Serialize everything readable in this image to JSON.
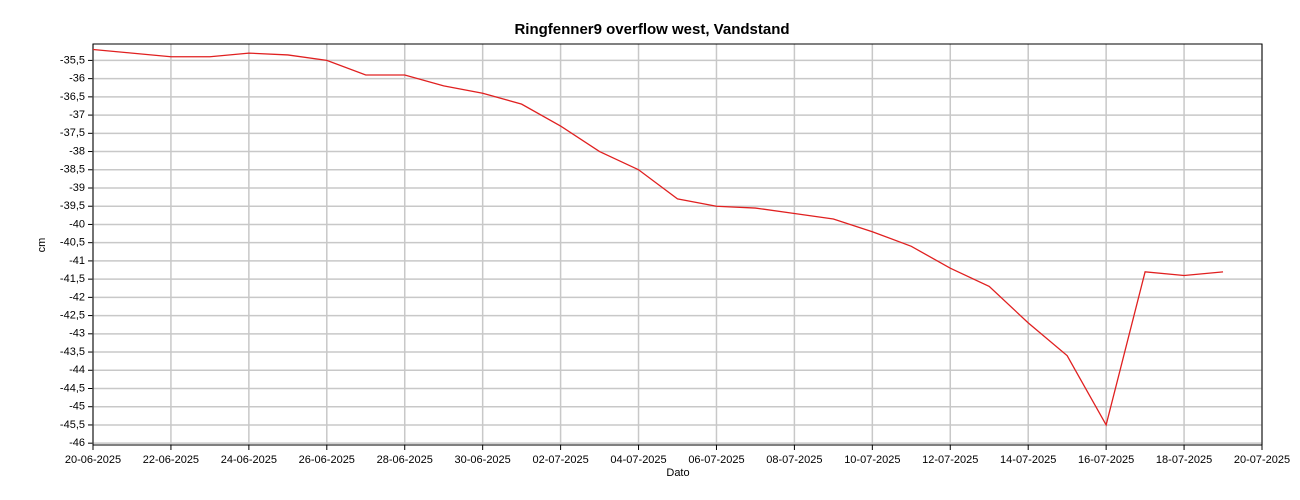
{
  "chart_data": {
    "type": "line",
    "title": "Ringfenner9 overflow west, Vandstand",
    "xlabel": "Dato",
    "ylabel": "cm",
    "grid": true,
    "x": [
      "2025-06-20",
      "2025-06-21",
      "2025-06-22",
      "2025-06-23",
      "2025-06-24",
      "2025-06-25",
      "2025-06-26",
      "2025-06-27",
      "2025-06-28",
      "2025-06-29",
      "2025-06-30",
      "2025-07-01",
      "2025-07-02",
      "2025-07-03",
      "2025-07-04",
      "2025-07-05",
      "2025-07-06",
      "2025-07-07",
      "2025-07-08",
      "2025-07-09",
      "2025-07-10",
      "2025-07-11",
      "2025-07-12",
      "2025-07-13",
      "2025-07-14",
      "2025-07-15",
      "2025-07-16",
      "2025-07-17",
      "2025-07-18",
      "2025-07-19"
    ],
    "series": [
      {
        "color": "#e02020",
        "values": [
          -35.2,
          -35.3,
          -35.4,
          -35.4,
          -35.3,
          -35.35,
          -35.5,
          -35.9,
          -35.9,
          -36.2,
          -36.4,
          -36.7,
          -37.3,
          -38.0,
          -38.5,
          -39.3,
          -39.5,
          -39.55,
          -39.7,
          -39.85,
          -40.2,
          -40.6,
          -41.2,
          -41.7,
          -42.7,
          -43.6,
          -45.5,
          -41.3,
          -41.4,
          -41.3
        ]
      }
    ],
    "xlim": [
      "2025-06-20",
      "2025-07-20"
    ],
    "xticks": [
      {
        "value": "2025-06-20",
        "label": "20-06-2025"
      },
      {
        "value": "2025-06-22",
        "label": "22-06-2025"
      },
      {
        "value": "2025-06-24",
        "label": "24-06-2025"
      },
      {
        "value": "2025-06-26",
        "label": "26-06-2025"
      },
      {
        "value": "2025-06-28",
        "label": "28-06-2025"
      },
      {
        "value": "2025-06-30",
        "label": "30-06-2025"
      },
      {
        "value": "2025-07-02",
        "label": "02-07-2025"
      },
      {
        "value": "2025-07-04",
        "label": "04-07-2025"
      },
      {
        "value": "2025-07-06",
        "label": "06-07-2025"
      },
      {
        "value": "2025-07-08",
        "label": "08-07-2025"
      },
      {
        "value": "2025-07-10",
        "label": "10-07-2025"
      },
      {
        "value": "2025-07-12",
        "label": "12-07-2025"
      },
      {
        "value": "2025-07-14",
        "label": "14-07-2025"
      },
      {
        "value": "2025-07-16",
        "label": "16-07-2025"
      },
      {
        "value": "2025-07-18",
        "label": "18-07-2025"
      },
      {
        "value": "2025-07-20",
        "label": "20-07-2025"
      }
    ],
    "ylim": [
      -46.05,
      -35.05
    ],
    "yticks": [
      {
        "value": -35.5,
        "label": "-35,5"
      },
      -36,
      {
        "value": -36.5,
        "label": "-36,5"
      },
      -37,
      {
        "value": -37.5,
        "label": "-37,5"
      },
      -38,
      {
        "value": -38.5,
        "label": "-38,5"
      },
      -39,
      {
        "value": -39.5,
        "label": "-39,5"
      },
      -40,
      {
        "value": -40.5,
        "label": "-40,5"
      },
      -41,
      {
        "value": -41.5,
        "label": "-41,5"
      },
      -42,
      {
        "value": -42.5,
        "label": "-42,5"
      },
      -43,
      {
        "value": -43.5,
        "label": "-43,5"
      },
      -44,
      {
        "value": -44.5,
        "label": "-44,5"
      },
      -45,
      {
        "value": -45.5,
        "label": "-45,5"
      },
      -46
    ]
  }
}
